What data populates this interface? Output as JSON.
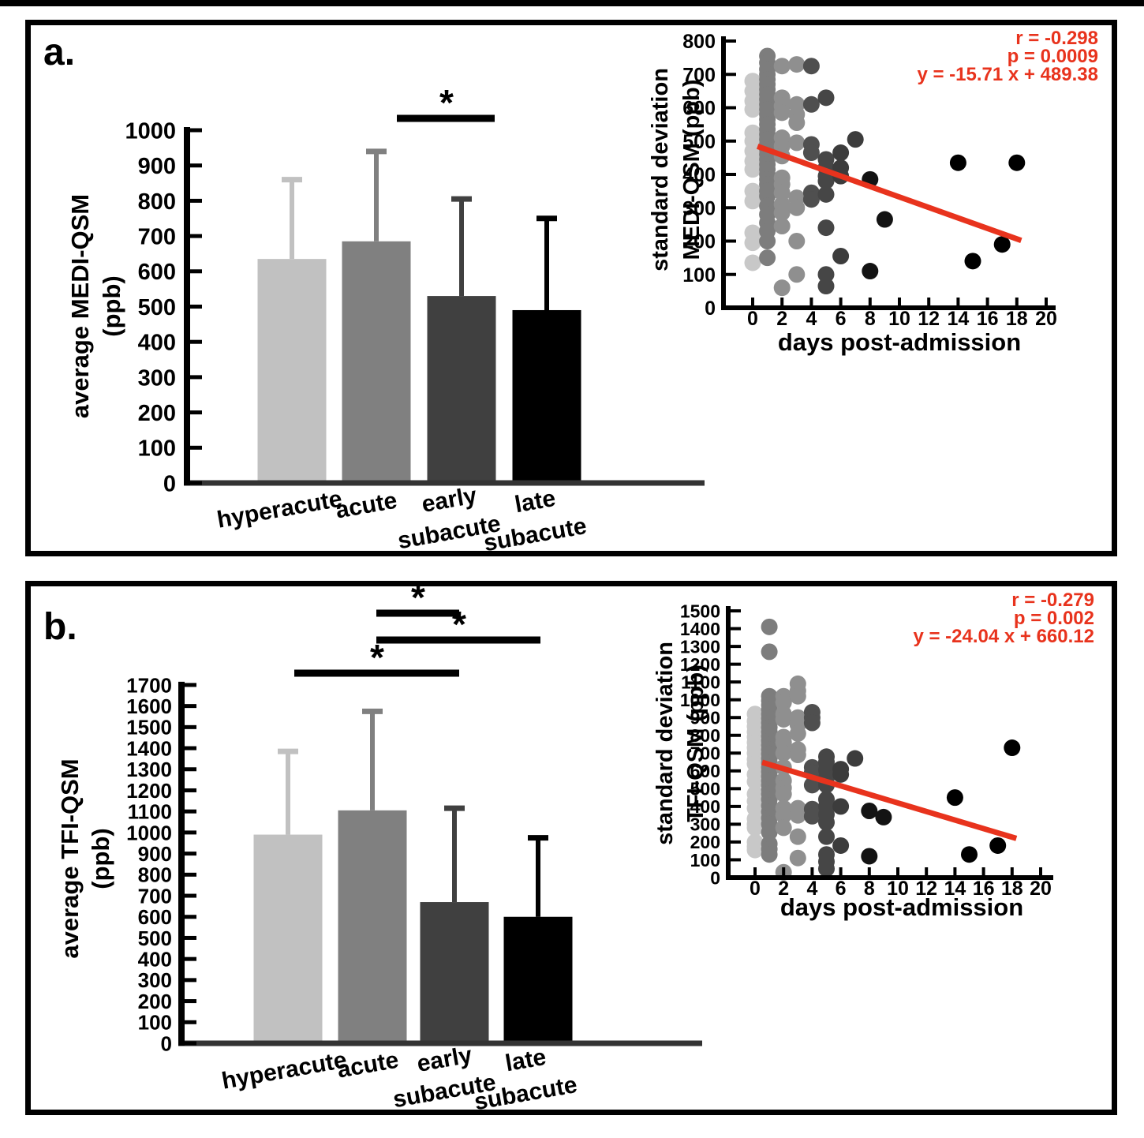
{
  "panels": [
    {
      "label": "a."
    },
    {
      "label": "b."
    }
  ],
  "chart_data": [
    {
      "id": "panel-a-bar",
      "panel": "a",
      "type": "bar",
      "categories": [
        "hyperacute",
        "acute",
        "early subacute",
        "late subacute"
      ],
      "category_lines": [
        [
          "hyperacute"
        ],
        [
          "acute"
        ],
        [
          "early",
          "subacute"
        ],
        [
          "late",
          "subacute"
        ]
      ],
      "values": [
        635,
        685,
        530,
        490
      ],
      "error_upper": [
        225,
        255,
        275,
        260
      ],
      "ylabel": "average MEDI-QSM (ppb)",
      "ylabel_lines": [
        "average MEDI-QSM",
        "(ppb)"
      ],
      "ylim": [
        0,
        1000
      ],
      "ytick_step": 100,
      "grid": false,
      "bar_colors": [
        "#c1c1c1",
        "#808080",
        "#404040",
        "#000000"
      ],
      "significance": [
        {
          "between": [
            "acute",
            "early subacute"
          ],
          "label": "*"
        }
      ]
    },
    {
      "id": "panel-a-scatter",
      "panel": "a",
      "type": "scatter",
      "xlabel": "days post-admission",
      "ylabel": "standard deviation MEDI-QSM (ppb)",
      "ylabel_lines": [
        "standard deviation",
        "MEDI-QSM (ppb)"
      ],
      "xlim": [
        0,
        20
      ],
      "ylim": [
        0,
        800
      ],
      "xtick_step": 2,
      "ytick_step": 100,
      "grid": false,
      "stats": {
        "r": "r = -0.298",
        "p": "p = 0.0009",
        "equation": "y = -15.71 x + 489.38"
      },
      "stats_color": "#e8331d",
      "regression": {
        "slope": -15.71,
        "intercept": 489.38,
        "x_start": 0.33,
        "x_end": 18.3,
        "color": "#e8331d"
      },
      "point_groups": [
        {
          "x": 0,
          "color": "#c8c8c8",
          "ys": [
            680,
            650,
            620,
            595,
            525,
            500,
            470,
            440,
            415,
            350,
            320,
            225,
            195,
            135
          ]
        },
        {
          "x": 1,
          "color": "#7d7d7d",
          "ys": [
            755,
            735,
            715,
            700,
            685,
            670,
            655,
            640,
            625,
            610,
            595,
            580,
            565,
            550,
            535,
            520,
            505,
            490,
            475,
            460,
            445,
            430,
            415,
            400,
            385,
            370,
            350,
            335,
            305,
            280,
            255,
            230,
            200,
            150
          ]
        },
        {
          "x": 2,
          "color": "#8f8f8f",
          "ys": [
            725,
            630,
            605,
            585,
            510,
            485,
            455,
            390,
            370,
            345,
            310,
            285,
            245,
            60
          ]
        },
        {
          "x": 3,
          "color": "#8f8f8f",
          "ys": [
            730,
            610,
            580,
            555,
            495,
            330,
            300,
            200,
            100
          ]
        },
        {
          "x": 4,
          "color": "#4f4f4f",
          "ys": [
            725,
            610,
            490,
            465,
            345,
            325
          ]
        },
        {
          "x": 5,
          "color": "#464646",
          "ys": [
            630,
            445,
            420,
            395,
            380,
            340,
            240,
            100,
            65
          ]
        },
        {
          "x": 6,
          "color": "#3c3c3c",
          "ys": [
            465,
            420,
            395,
            155
          ]
        },
        {
          "x": 7,
          "color": "#3c3c3c",
          "ys": [
            505
          ]
        },
        {
          "x": 8,
          "color": "#131313",
          "ys": [
            385,
            110
          ]
        },
        {
          "x": 9,
          "color": "#131313",
          "ys": [
            265
          ]
        },
        {
          "x": 14,
          "color": "#000000",
          "ys": [
            435
          ]
        },
        {
          "x": 15,
          "color": "#000000",
          "ys": [
            140
          ]
        },
        {
          "x": 17,
          "color": "#000000",
          "ys": [
            190
          ]
        },
        {
          "x": 18,
          "color": "#000000",
          "ys": [
            435
          ]
        }
      ]
    },
    {
      "id": "panel-b-bar",
      "panel": "b",
      "type": "bar",
      "categories": [
        "hyperacute",
        "acute",
        "early subacute",
        "late subacute"
      ],
      "category_lines": [
        [
          "hyperacute"
        ],
        [
          "acute"
        ],
        [
          "early",
          "subacute"
        ],
        [
          "late",
          "subacute"
        ]
      ],
      "values": [
        990,
        1105,
        670,
        600
      ],
      "error_upper": [
        395,
        470,
        445,
        375
      ],
      "ylabel": "average TFI-QSM (ppb)",
      "ylabel_lines": [
        "average TFI-QSM",
        "(ppb)"
      ],
      "ylim": [
        0,
        1700
      ],
      "ytick_step": 100,
      "grid": false,
      "bar_colors": [
        "#c1c1c1",
        "#808080",
        "#404040",
        "#000000"
      ],
      "significance": [
        {
          "between": [
            "acute",
            "early subacute"
          ],
          "label": "*"
        },
        {
          "between": [
            "acute",
            "late subacute"
          ],
          "label": "*"
        },
        {
          "between": [
            "hyperacute",
            "early subacute"
          ],
          "label": "*"
        }
      ]
    },
    {
      "id": "panel-b-scatter",
      "panel": "b",
      "type": "scatter",
      "xlabel": "days post-admission",
      "ylabel": "standard deviation TFI-QSM (ppb)",
      "ylabel_lines": [
        "standard deviation",
        "TFI-QSM (ppb)"
      ],
      "xlim": [
        0,
        20
      ],
      "ylim": [
        0,
        1500
      ],
      "xtick_step": 2,
      "ytick_step": 100,
      "grid": false,
      "stats": {
        "r": "r = -0.279",
        "p": "p = 0.002",
        "equation": "y = -24.04 x + 660.12"
      },
      "stats_color": "#e8331d",
      "regression": {
        "slope": -24.04,
        "intercept": 660.12,
        "x_start": 0.5,
        "x_end": 18.3,
        "color": "#e8331d"
      },
      "point_groups": [
        {
          "x": 0,
          "color": "#c8c8c8",
          "ys": [
            920,
            880,
            850,
            820,
            790,
            760,
            730,
            700,
            665,
            640,
            580,
            540,
            470,
            430,
            390,
            330,
            300,
            280,
            200,
            175,
            155
          ]
        },
        {
          "x": 1,
          "color": "#7d7d7d",
          "ys": [
            1410,
            1270,
            1020,
            995,
            970,
            945,
            920,
            895,
            870,
            845,
            820,
            795,
            770,
            745,
            720,
            695,
            670,
            645,
            620,
            595,
            570,
            545,
            520,
            495,
            470,
            440,
            405,
            370,
            335,
            300,
            255,
            190,
            160,
            130
          ]
        },
        {
          "x": 2,
          "color": "#8f8f8f",
          "ys": [
            1020,
            985,
            920,
            890,
            790,
            760,
            700,
            620,
            545,
            505,
            470,
            390,
            350,
            280,
            30
          ]
        },
        {
          "x": 3,
          "color": "#8f8f8f",
          "ys": [
            1090,
            1050,
            1020,
            900,
            860,
            810,
            720,
            690,
            390,
            350,
            230,
            110
          ]
        },
        {
          "x": 4,
          "color": "#4f4f4f",
          "ys": [
            930,
            900,
            870,
            620,
            590,
            520,
            385,
            345
          ]
        },
        {
          "x": 5,
          "color": "#464646",
          "ys": [
            680,
            650,
            605,
            560,
            520,
            440,
            400,
            355,
            310,
            230,
            130,
            90,
            50
          ]
        },
        {
          "x": 6,
          "color": "#3c3c3c",
          "ys": [
            610,
            580,
            400,
            180
          ]
        },
        {
          "x": 7,
          "color": "#3c3c3c",
          "ys": [
            670
          ]
        },
        {
          "x": 8,
          "color": "#131313",
          "ys": [
            375,
            120
          ]
        },
        {
          "x": 9,
          "color": "#131313",
          "ys": [
            340
          ]
        },
        {
          "x": 14,
          "color": "#000000",
          "ys": [
            450
          ]
        },
        {
          "x": 15,
          "color": "#000000",
          "ys": [
            130
          ]
        },
        {
          "x": 17,
          "color": "#000000",
          "ys": [
            180
          ]
        },
        {
          "x": 18,
          "color": "#000000",
          "ys": [
            730
          ]
        }
      ]
    }
  ]
}
